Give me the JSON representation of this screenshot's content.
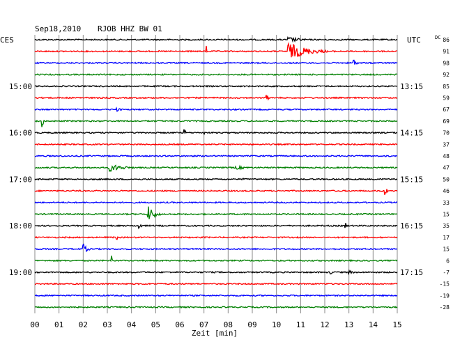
{
  "header": {
    "date": "Sep18,2010",
    "station": "RJOB HHZ BW 01",
    "left_zone": "CES",
    "right_zone": "UTC",
    "dc_label": "DC"
  },
  "chart_data": {
    "type": "line",
    "title": "Sep18,2010 RJOB HHZ BW 01",
    "xlabel": "Zeit [min]",
    "xlim": [
      0,
      15
    ],
    "x_ticks": [
      "00",
      "01",
      "02",
      "03",
      "04",
      "05",
      "06",
      "07",
      "08",
      "09",
      "10",
      "11",
      "12",
      "13",
      "14",
      "15"
    ],
    "trace_colors": [
      "#000000",
      "#ff0000",
      "#0000ff",
      "#008000"
    ],
    "left_time_labels": [
      {
        "trace": 4,
        "label": "15:00"
      },
      {
        "trace": 8,
        "label": "16:00"
      },
      {
        "trace": 12,
        "label": "17:00"
      },
      {
        "trace": 16,
        "label": "18:00"
      },
      {
        "trace": 20,
        "label": "19:00"
      }
    ],
    "right_time_labels": [
      {
        "trace": 4,
        "label": "13:15"
      },
      {
        "trace": 8,
        "label": "14:15"
      },
      {
        "trace": 12,
        "label": "15:15"
      },
      {
        "trace": 16,
        "label": "16:15"
      },
      {
        "trace": 20,
        "label": "17:15"
      }
    ],
    "dc_offsets": [
      "86",
      "91",
      "98",
      "92",
      "85",
      "59",
      "67",
      "69",
      "70",
      "37",
      "48",
      "47",
      "50",
      "46",
      "33",
      "15",
      "35",
      "17",
      "15",
      "6",
      "-7",
      "-15",
      "-19",
      "-28"
    ],
    "events": [
      {
        "trace": 0,
        "x": 10.5,
        "amp": 4,
        "dur": 1.2
      },
      {
        "trace": 1,
        "x": 7.1,
        "amp": 12,
        "dur": 0.05
      },
      {
        "trace": 1,
        "x": 10.5,
        "amp": 13,
        "dur": 1.6
      },
      {
        "trace": 2,
        "x": 13.2,
        "amp": 7,
        "dur": 0.15
      },
      {
        "trace": 5,
        "x": 9.6,
        "amp": 6,
        "dur": 0.1
      },
      {
        "trace": 6,
        "x": 3.4,
        "amp": 3,
        "dur": 0.3
      },
      {
        "trace": 7,
        "x": 0.3,
        "amp": 9,
        "dur": 0.1
      },
      {
        "trace": 8,
        "x": 6.2,
        "amp": 6,
        "dur": 0.05
      },
      {
        "trace": 8,
        "x": 7.0,
        "amp": 3,
        "dur": 0.05
      },
      {
        "trace": 11,
        "x": 3.1,
        "amp": 6,
        "dur": 1.2
      },
      {
        "trace": 11,
        "x": 8.3,
        "amp": 3,
        "dur": 1.0
      },
      {
        "trace": 12,
        "x": 8.6,
        "amp": 5,
        "dur": 0.05
      },
      {
        "trace": 13,
        "x": 14.5,
        "amp": 9,
        "dur": 0.1
      },
      {
        "trace": 15,
        "x": 4.7,
        "amp": 12,
        "dur": 0.5
      },
      {
        "trace": 16,
        "x": 4.3,
        "amp": 7,
        "dur": 0.15
      },
      {
        "trace": 16,
        "x": 12.8,
        "amp": 12,
        "dur": 0.1
      },
      {
        "trace": 17,
        "x": 3.4,
        "amp": 4,
        "dur": 0.1
      },
      {
        "trace": 18,
        "x": 2.0,
        "amp": 8,
        "dur": 0.3
      },
      {
        "trace": 19,
        "x": 3.2,
        "amp": 10,
        "dur": 0.05
      },
      {
        "trace": 20,
        "x": 12.2,
        "amp": 3,
        "dur": 0.4
      },
      {
        "trace": 20,
        "x": 13.0,
        "amp": 3,
        "dur": 0.4
      }
    ]
  }
}
